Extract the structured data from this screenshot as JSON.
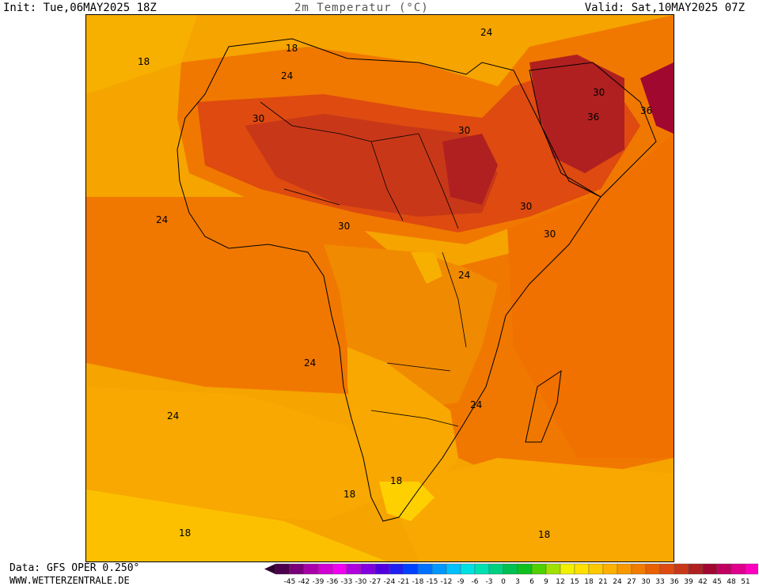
{
  "header": {
    "init": "Init: Tue,06MAY2025 18Z",
    "title": "2m Temperatur (°C)",
    "valid": "Valid: Sat,10MAY2025 07Z"
  },
  "footer": {
    "data_source": "Data: GFS OPER 0.250°",
    "website": "WWW.WETTERZENTRALE.DE"
  },
  "contour_labels": [
    "18",
    "18",
    "24",
    "30",
    "24",
    "30",
    "36",
    "30",
    "36",
    "30",
    "30",
    "24",
    "30",
    "24",
    "24",
    "24",
    "18",
    "18",
    "18",
    "18",
    "24"
  ],
  "colorbar": {
    "ticks": [
      "-45",
      "-42",
      "-39",
      "-36",
      "-33",
      "-30",
      "-27",
      "-24",
      "-21",
      "-18",
      "-15",
      "-12",
      "-9",
      "-6",
      "-3",
      "0",
      "3",
      "6",
      "9",
      "12",
      "15",
      "18",
      "21",
      "24",
      "27",
      "30",
      "33",
      "36",
      "39",
      "42",
      "45",
      "48",
      "51"
    ],
    "colors": [
      "#4a004a",
      "#7a007a",
      "#a800a8",
      "#d000d0",
      "#f000f0",
      "#b000e0",
      "#8000e0",
      "#5000e0",
      "#2020f0",
      "#0040ff",
      "#0070ff",
      "#0098ff",
      "#00c0ff",
      "#00e0e0",
      "#00e0b0",
      "#00d080",
      "#00c050",
      "#10c020",
      "#50d000",
      "#a0e000",
      "#f0f000",
      "#ffe000",
      "#ffc800",
      "#ffb000",
      "#f89800",
      "#f07c00",
      "#e86000",
      "#de4a10",
      "#c83818",
      "#b02020",
      "#a00830",
      "#c00060",
      "#e0008c",
      "#ff00c0"
    ],
    "under_color": "#300030",
    "over_color": "#ff20c8"
  },
  "colors": {
    "cold": "#ffd000",
    "mild": "#fcc000",
    "warm": "#f8a800",
    "hot": "#f07800",
    "very_hot": "#e65a10",
    "extreme": "#c83818",
    "peak": "#a81c20"
  }
}
